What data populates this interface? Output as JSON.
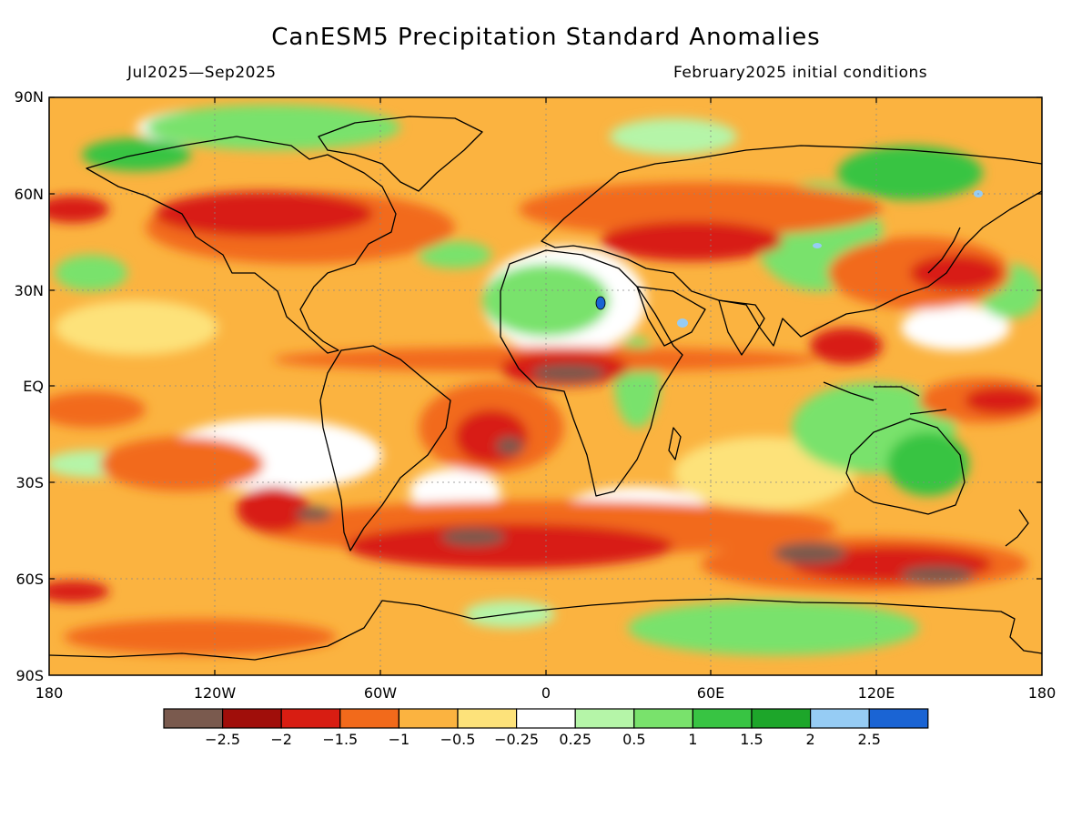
{
  "map": {
    "title": "CanESM5 Precipitation Standard Anomalies",
    "period": "Jul2025—Sep2025",
    "initial_conditions": "February2025 initial conditions",
    "lat_labels": [
      "90N",
      "60N",
      "30N",
      "EQ",
      "30S",
      "60S",
      "90S"
    ],
    "lon_labels": [
      "180",
      "120W",
      "60W",
      "0",
      "60E",
      "120E",
      "180"
    ]
  },
  "legend": {
    "colors": [
      "#7a5a4e",
      "#a00e0a",
      "#d81d12",
      "#f26a1b",
      "#fbb340",
      "#fde27a",
      "#ffffff",
      "#b5f5a8",
      "#79e26c",
      "#38c443",
      "#1da62a",
      "#96ccf4",
      "#1a64d4"
    ],
    "labels": [
      "−2.5",
      "−2",
      "−1.5",
      "−1",
      "−0.5",
      "−0.25",
      "0.25",
      "0.5",
      "1",
      "1.5",
      "2",
      "2.5"
    ]
  }
}
